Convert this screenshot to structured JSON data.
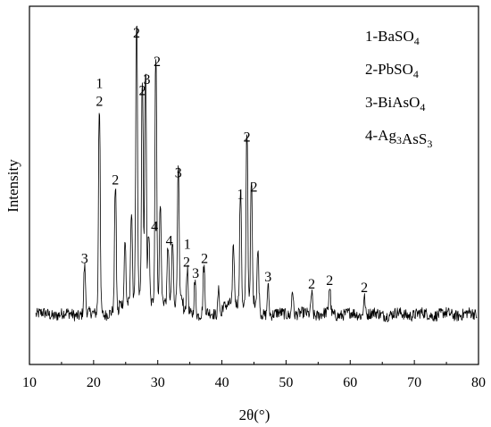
{
  "chart_data": {
    "type": "line",
    "title": "",
    "xlabel": "2θ(°)",
    "ylabel": "Intensity",
    "xlim": [
      10,
      80
    ],
    "ylim": [
      0,
      100
    ],
    "x_ticks": [
      10,
      20,
      30,
      40,
      50,
      60,
      70,
      80
    ],
    "grid": false,
    "legend_position": "top-right",
    "line_color": "#000000",
    "legend": [
      {
        "id": "1",
        "formula_parts": [
          {
            "t": "1-BaSO",
            "sub": false
          },
          {
            "t": "4",
            "sub": true
          }
        ]
      },
      {
        "id": "2",
        "formula_parts": [
          {
            "t": "2-PbSO",
            "sub": false
          },
          {
            "t": "4",
            "sub": true
          }
        ]
      },
      {
        "id": "3",
        "formula_parts": [
          {
            "t": "3-BiAsO",
            "sub": false
          },
          {
            "t": "4",
            "sub": true
          }
        ]
      },
      {
        "id": "4",
        "formula_parts": [
          {
            "t": "4-Ag",
            "sub": false
          },
          {
            "t": "3",
            "sub": true
          },
          {
            "t": "AsS",
            "sub": false
          },
          {
            "t": "3",
            "sub": true
          }
        ]
      }
    ],
    "baseline": 14,
    "peaks": [
      {
        "x": 18.6,
        "y": 27
      },
      {
        "x": 20.9,
        "y": 71
      },
      {
        "x": 23.4,
        "y": 49
      },
      {
        "x": 24.9,
        "y": 31
      },
      {
        "x": 25.9,
        "y": 39
      },
      {
        "x": 26.7,
        "y": 90
      },
      {
        "x": 27.6,
        "y": 74
      },
      {
        "x": 28.1,
        "y": 77
      },
      {
        "x": 28.6,
        "y": 33
      },
      {
        "x": 29.7,
        "y": 82
      },
      {
        "x": 30.4,
        "y": 40
      },
      {
        "x": 31.6,
        "y": 30
      },
      {
        "x": 32.3,
        "y": 31
      },
      {
        "x": 33.2,
        "y": 51
      },
      {
        "x": 34.6,
        "y": 26
      },
      {
        "x": 35.8,
        "y": 23
      },
      {
        "x": 37.2,
        "y": 27
      },
      {
        "x": 39.5,
        "y": 21
      },
      {
        "x": 41.8,
        "y": 29
      },
      {
        "x": 42.9,
        "y": 45
      },
      {
        "x": 43.9,
        "y": 61
      },
      {
        "x": 44.6,
        "y": 47
      },
      {
        "x": 45.6,
        "y": 28
      },
      {
        "x": 47.2,
        "y": 22
      },
      {
        "x": 51.0,
        "y": 21
      },
      {
        "x": 54.0,
        "y": 20
      },
      {
        "x": 56.8,
        "y": 21
      },
      {
        "x": 62.2,
        "y": 19
      }
    ],
    "peak_labels": [
      {
        "x": 18.6,
        "y": 27,
        "lines": [
          "3"
        ]
      },
      {
        "x": 20.9,
        "y": 71,
        "lines": [
          "1",
          "2"
        ]
      },
      {
        "x": 23.4,
        "y": 49,
        "lines": [
          "2"
        ]
      },
      {
        "x": 26.7,
        "y": 90,
        "lines": [
          "2"
        ]
      },
      {
        "x": 27.6,
        "y": 74,
        "lines": [
          "2"
        ]
      },
      {
        "x": 28.3,
        "y": 77,
        "lines": [
          "3"
        ]
      },
      {
        "x": 29.5,
        "y": 36,
        "lines": [
          "4"
        ]
      },
      {
        "x": 29.9,
        "y": 82,
        "lines": [
          "2"
        ]
      },
      {
        "x": 31.8,
        "y": 32,
        "lines": [
          "4"
        ]
      },
      {
        "x": 33.2,
        "y": 51,
        "lines": [
          "3"
        ]
      },
      {
        "x": 34.6,
        "y": 31,
        "lines": [
          "1"
        ]
      },
      {
        "x": 34.5,
        "y": 26,
        "lines": [
          "2"
        ]
      },
      {
        "x": 35.9,
        "y": 23,
        "lines": [
          "3"
        ]
      },
      {
        "x": 37.3,
        "y": 27,
        "lines": [
          "2"
        ]
      },
      {
        "x": 42.9,
        "y": 45,
        "lines": [
          "1"
        ]
      },
      {
        "x": 43.9,
        "y": 61,
        "lines": [
          "2"
        ]
      },
      {
        "x": 45.0,
        "y": 47,
        "lines": [
          "2"
        ]
      },
      {
        "x": 47.2,
        "y": 22,
        "lines": [
          "3"
        ]
      },
      {
        "x": 54.0,
        "y": 20,
        "lines": [
          "2"
        ]
      },
      {
        "x": 56.8,
        "y": 21,
        "lines": [
          "2"
        ]
      },
      {
        "x": 62.2,
        "y": 19,
        "lines": [
          "2"
        ]
      }
    ]
  }
}
